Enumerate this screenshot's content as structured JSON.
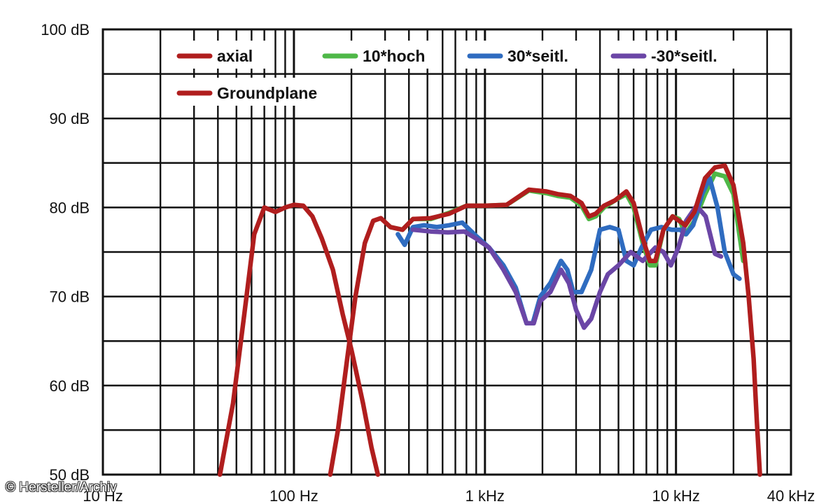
{
  "chart_data": {
    "type": "line",
    "x_scale": "log",
    "xlim_hz": [
      10,
      40000
    ],
    "ylim_db": [
      50,
      100
    ],
    "grid": true,
    "legend_position": "top",
    "y_ticks": [
      {
        "value": 100,
        "label": "100 dB"
      },
      {
        "value": 90,
        "label": "90 dB"
      },
      {
        "value": 80,
        "label": "80 dB"
      },
      {
        "value": 70,
        "label": "70 dB"
      },
      {
        "value": 60,
        "label": "60 dB"
      },
      {
        "value": 50,
        "label": "50 dB"
      }
    ],
    "x_ticks": [
      {
        "value": 10,
        "label": "10 Hz"
      },
      {
        "value": 100,
        "label": "100 Hz"
      },
      {
        "value": 1000,
        "label": "1 kHz"
      },
      {
        "value": 10000,
        "label": "10 kHz"
      },
      {
        "value": 40000,
        "label": "40 kHz"
      }
    ],
    "series": [
      {
        "name": "Groundplane",
        "color": "#b01e1e",
        "legend": true,
        "points": [
          [
            41,
            50
          ],
          [
            48,
            58
          ],
          [
            55,
            68
          ],
          [
            62,
            77
          ],
          [
            70,
            80
          ],
          [
            80,
            79.5
          ],
          [
            90,
            80
          ],
          [
            100,
            80.3
          ],
          [
            112,
            80.2
          ],
          [
            125,
            79
          ],
          [
            140,
            76.5
          ],
          [
            160,
            73
          ],
          [
            180,
            68
          ],
          [
            200,
            64
          ],
          [
            230,
            58
          ],
          [
            255,
            53
          ],
          [
            275,
            50
          ]
        ]
      },
      {
        "name": "",
        "color": "#b01e1e",
        "legend": false,
        "points": [
          [
            155,
            50
          ],
          [
            170,
            55
          ],
          [
            190,
            63
          ],
          [
            210,
            70
          ],
          [
            235,
            76
          ],
          [
            260,
            78.5
          ],
          [
            285,
            78.8
          ],
          [
            320,
            77.8
          ]
        ]
      },
      {
        "name": "10*hoch",
        "color": "#4fb848",
        "legend": true,
        "points": [
          [
            320,
            77.8
          ],
          [
            370,
            77.5
          ],
          [
            420,
            78.7
          ],
          [
            520,
            78.7
          ],
          [
            650,
            79.4
          ],
          [
            800,
            80.2
          ],
          [
            1000,
            80.2
          ],
          [
            1300,
            80.3
          ],
          [
            1700,
            81.9
          ],
          [
            2100,
            81.6
          ],
          [
            2400,
            81.3
          ],
          [
            2800,
            81.1
          ],
          [
            3200,
            80.2
          ],
          [
            3500,
            78.7
          ],
          [
            3800,
            79
          ],
          [
            4200,
            80
          ],
          [
            4800,
            80.8
          ],
          [
            5500,
            81.5
          ],
          [
            6000,
            80
          ],
          [
            6700,
            76
          ],
          [
            7300,
            73.5
          ],
          [
            7800,
            73.5
          ],
          [
            8600,
            77.5
          ],
          [
            9600,
            79
          ],
          [
            10400,
            78.7
          ],
          [
            11200,
            77
          ],
          [
            12500,
            78.5
          ],
          [
            14200,
            81.5
          ],
          [
            16000,
            83.8
          ],
          [
            18000,
            83.5
          ],
          [
            20000,
            81.5
          ],
          [
            22500,
            74
          ]
        ]
      },
      {
        "name": "30*seitl.",
        "color": "#2f6cc0",
        "legend": true,
        "points": [
          [
            350,
            77
          ],
          [
            380,
            75.8
          ],
          [
            420,
            77.8
          ],
          [
            480,
            78
          ],
          [
            560,
            77.8
          ],
          [
            650,
            78
          ],
          [
            760,
            78.3
          ],
          [
            880,
            77
          ],
          [
            1050,
            75.5
          ],
          [
            1250,
            73.5
          ],
          [
            1450,
            71
          ],
          [
            1650,
            67
          ],
          [
            1780,
            67
          ],
          [
            1950,
            70
          ],
          [
            2200,
            71.5
          ],
          [
            2500,
            74
          ],
          [
            2700,
            73
          ],
          [
            2900,
            70.5
          ],
          [
            3200,
            70.5
          ],
          [
            3600,
            73
          ],
          [
            4000,
            77.5
          ],
          [
            4500,
            77.8
          ],
          [
            5000,
            77.5
          ],
          [
            5500,
            74
          ],
          [
            6000,
            73.5
          ],
          [
            6600,
            75.5
          ],
          [
            7400,
            77.5
          ],
          [
            8400,
            77.8
          ],
          [
            9500,
            77.5
          ],
          [
            10500,
            77.5
          ],
          [
            11300,
            77
          ],
          [
            12300,
            78
          ],
          [
            13700,
            81.5
          ],
          [
            15000,
            83.3
          ],
          [
            16500,
            80
          ],
          [
            18000,
            75
          ],
          [
            20000,
            72.5
          ],
          [
            21500,
            72
          ]
        ]
      },
      {
        "name": "-30*seitl.",
        "color": "#6b46a6",
        "legend": true,
        "points": [
          [
            420,
            77.5
          ],
          [
            520,
            77.3
          ],
          [
            640,
            77.2
          ],
          [
            780,
            77.3
          ],
          [
            900,
            76.5
          ],
          [
            1050,
            75.5
          ],
          [
            1250,
            73
          ],
          [
            1450,
            70.5
          ],
          [
            1650,
            67
          ],
          [
            1800,
            67
          ],
          [
            1950,
            69.5
          ],
          [
            2200,
            70.5
          ],
          [
            2500,
            73
          ],
          [
            2750,
            71.5
          ],
          [
            3000,
            68.5
          ],
          [
            3300,
            66.5
          ],
          [
            3600,
            67.5
          ],
          [
            4000,
            70.5
          ],
          [
            4400,
            72.5
          ],
          [
            5000,
            73.5
          ],
          [
            5800,
            75
          ],
          [
            6700,
            74
          ],
          [
            7800,
            75.5
          ],
          [
            8600,
            75
          ],
          [
            9400,
            73.5
          ],
          [
            10300,
            75.5
          ],
          [
            11300,
            78.5
          ],
          [
            12800,
            80.2
          ],
          [
            14300,
            79
          ],
          [
            16000,
            74.8
          ],
          [
            17200,
            74.5
          ]
        ]
      },
      {
        "name": "axial",
        "color": "#b01e1e",
        "legend": true,
        "points": [
          [
            320,
            77.8
          ],
          [
            370,
            77.5
          ],
          [
            420,
            78.7
          ],
          [
            520,
            78.8
          ],
          [
            650,
            79.3
          ],
          [
            800,
            80.2
          ],
          [
            1000,
            80.2
          ],
          [
            1300,
            80.3
          ],
          [
            1700,
            82
          ],
          [
            2100,
            81.8
          ],
          [
            2400,
            81.5
          ],
          [
            2800,
            81.3
          ],
          [
            3200,
            80.5
          ],
          [
            3500,
            79
          ],
          [
            3800,
            79.3
          ],
          [
            4200,
            80.2
          ],
          [
            4800,
            80.8
          ],
          [
            5500,
            81.8
          ],
          [
            6000,
            80.5
          ],
          [
            6700,
            76.5
          ],
          [
            7300,
            74
          ],
          [
            7800,
            74
          ],
          [
            8600,
            77.5
          ],
          [
            9600,
            79
          ],
          [
            10400,
            78.5
          ],
          [
            11200,
            78
          ],
          [
            12500,
            79.5
          ],
          [
            14200,
            83.3
          ],
          [
            16000,
            84.5
          ],
          [
            18000,
            84.7
          ],
          [
            20000,
            82.5
          ],
          [
            22500,
            76
          ],
          [
            24000,
            70
          ],
          [
            25500,
            63
          ],
          [
            26500,
            56
          ],
          [
            27500,
            50
          ]
        ]
      }
    ],
    "legend": [
      {
        "label": "axial",
        "color": "#b01e1e"
      },
      {
        "label": "10*hoch",
        "color": "#4fb848"
      },
      {
        "label": "30*seitl.",
        "color": "#2f6cc0"
      },
      {
        "label": "-30*seitl.",
        "color": "#6b46a6"
      },
      {
        "label": "Groundplane",
        "color": "#b01e1e"
      }
    ]
  },
  "credit": "© Hersteller/Archiv"
}
